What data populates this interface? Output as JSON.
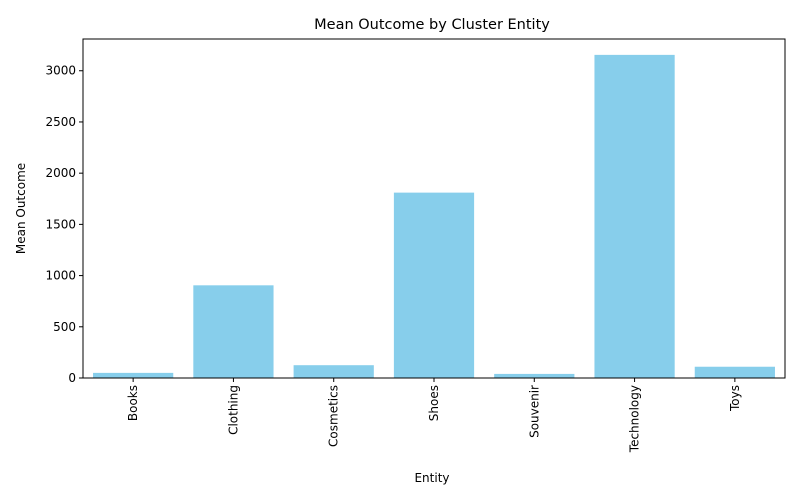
{
  "chart_data": {
    "type": "bar",
    "title": "Mean Outcome by Cluster Entity",
    "xlabel": "Entity",
    "ylabel": "Mean Outcome",
    "categories": [
      "Books",
      "Clothing",
      "Cosmetics",
      "Shoes",
      "Souvenir",
      "Technology",
      "Toys"
    ],
    "values": [
      50,
      905,
      125,
      1810,
      40,
      3155,
      110
    ],
    "ylim": [
      0,
      3310
    ],
    "yticks": [
      0,
      500,
      1000,
      1500,
      2000,
      2500,
      3000
    ],
    "bar_color": "#87ceeb",
    "grid": false,
    "x_tick_rotation": "vertical"
  }
}
